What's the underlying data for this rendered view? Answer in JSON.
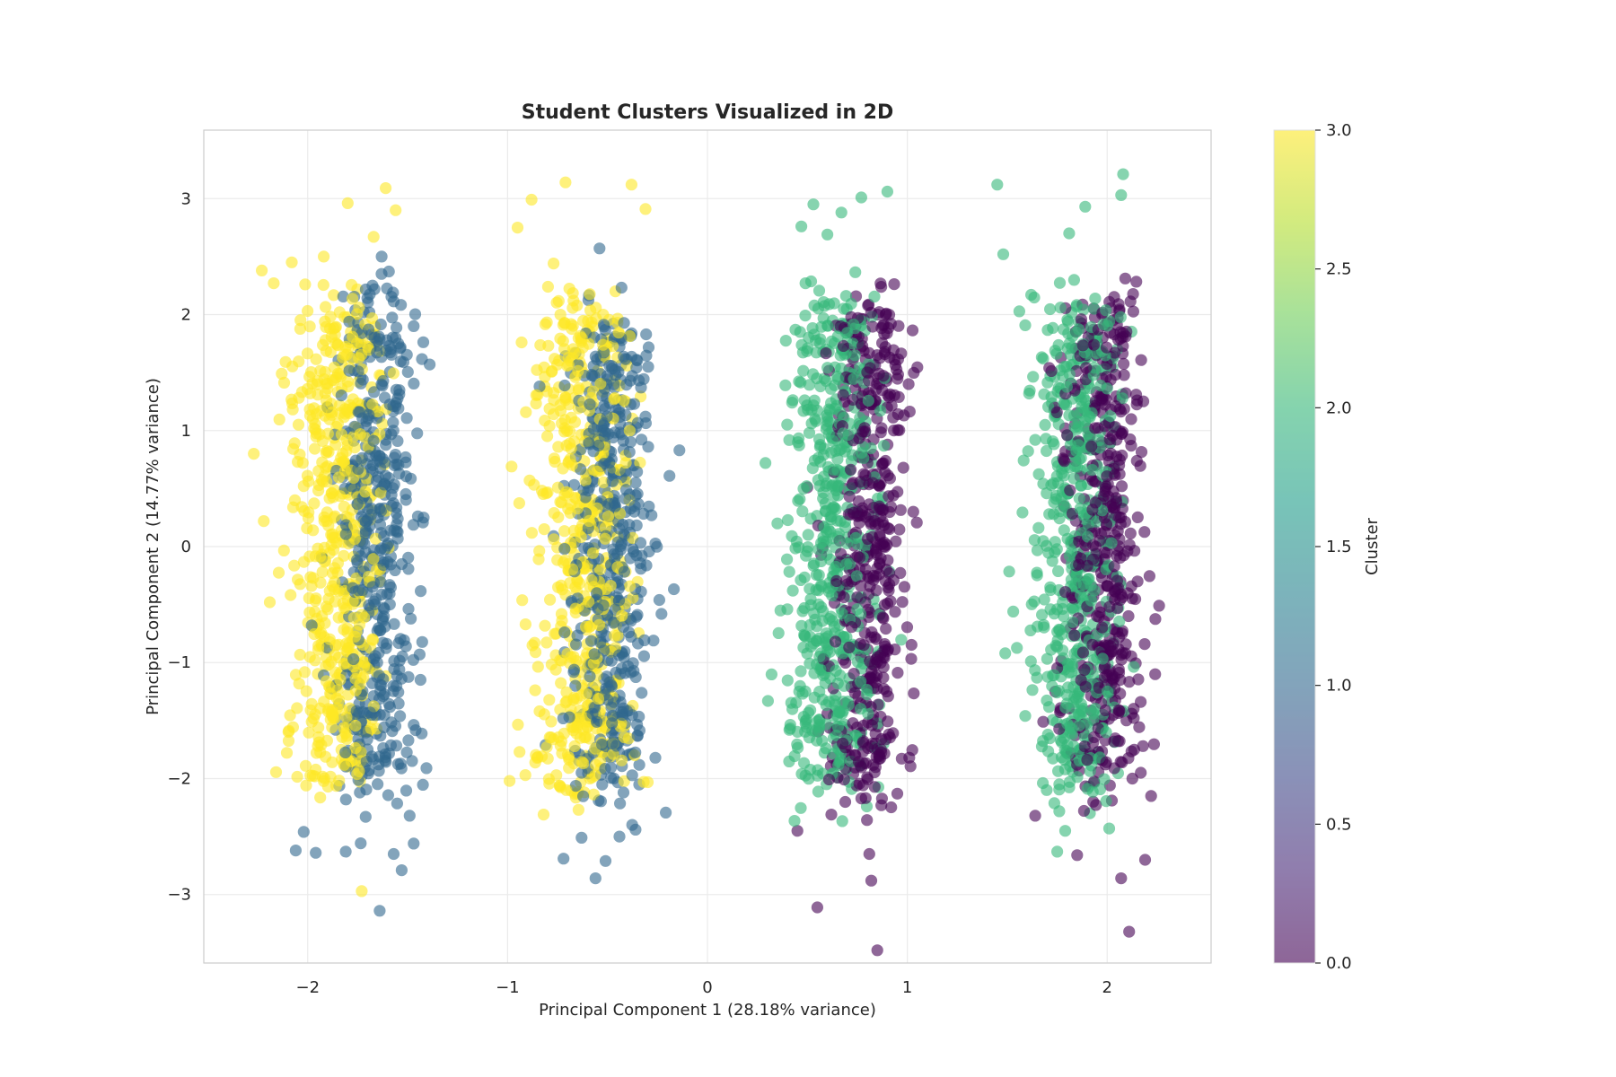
{
  "chart_data": {
    "type": "scatter",
    "title": "Student Clusters Visualized in 2D",
    "xlabel": "Principal Component 1 (28.18% variance)",
    "ylabel": "Principal Component 2 (14.77% variance)",
    "xlim": [
      -2.52,
      2.52
    ],
    "ylim": [
      -3.59,
      3.59
    ],
    "xticks": [
      -2,
      -1,
      0,
      1,
      2
    ],
    "xtick_labels": [
      "−2",
      "−1",
      "0",
      "1",
      "2"
    ],
    "yticks": [
      -3,
      -2,
      -1,
      0,
      1,
      2,
      3
    ],
    "ytick_labels": [
      "−3",
      "−2",
      "−1",
      "0",
      "1",
      "2",
      "3"
    ],
    "grid": true,
    "marker_alpha": 0.6,
    "colormap": "viridis",
    "colorbar": {
      "label": "Cluster",
      "range": [
        0.0,
        3.0
      ],
      "ticks": [
        0.0,
        0.5,
        1.0,
        1.5,
        2.0,
        2.5,
        3.0
      ],
      "tick_labels": [
        "0.0",
        "0.5",
        "1.0",
        "1.5",
        "2.0",
        "2.5",
        "3.0"
      ],
      "stops": [
        "#440154",
        "#482878",
        "#3e4989",
        "#31688e",
        "#26828e",
        "#1f9e89",
        "#35b779",
        "#6ece58",
        "#b5de2b",
        "#fde725"
      ]
    },
    "series": [
      {
        "cluster": 0,
        "color": "#440154",
        "x": [
          0.82,
          0.81,
          0.85,
          0.87,
          0.73,
          0.62,
          0.55,
          0.95,
          1.01,
          0.45,
          1.85,
          2.07,
          2.19,
          1.64,
          1.82,
          1.93,
          2.22,
          1.68,
          2.11,
          1.97,
          0.5,
          0.88,
          0.72,
          0.68,
          0.79,
          0.93,
          0.6,
          0.98,
          1.79,
          2.03,
          1.99,
          2.15,
          1.89,
          1.74,
          2.26,
          1.71,
          2.01,
          0.58,
          0.77,
          0.91,
          1.03,
          2.24,
          2.12
        ],
        "y": [
          -2.88,
          -2.65,
          -3.48,
          -2.23,
          -1.96,
          -2.31,
          -3.11,
          -2.13,
          -1.82,
          -2.45,
          -2.66,
          -2.86,
          -2.7,
          -2.32,
          -1.78,
          -2.2,
          -2.15,
          -1.51,
          -3.32,
          -1.35,
          0.51,
          -0.62,
          -1.21,
          1.73,
          -0.48,
          0.44,
          -1.44,
          0.68,
          1.02,
          -0.84,
          -1.67,
          1.26,
          0.19,
          -1.25,
          -0.51,
          1.54,
          0.05,
          -0.97,
          0.97,
          -0.23,
          0.3,
          -1.1,
          0.87
        ]
      },
      {
        "cluster": 1,
        "color": "#31688e",
        "x": [
          -1.53,
          -1.57,
          -1.64,
          -1.96,
          -2.06,
          -2.02,
          -1.49,
          -1.71,
          -1.81,
          -1.47,
          -1.39,
          -1.47,
          -1.63,
          -0.56,
          -0.63,
          -0.51,
          -0.36,
          -0.42,
          -0.44,
          -0.72,
          -0.27,
          -0.81,
          -0.28,
          -0.14,
          -0.62,
          -0.54,
          -0.49,
          -1.78,
          -1.59,
          -1.86,
          -1.69,
          -1.51,
          -1.92,
          -1.73,
          -1.44,
          -0.58,
          -0.46,
          -0.68,
          -0.31,
          -0.77,
          -0.39,
          -0.23,
          -0.84,
          -1.62,
          -1.55,
          -1.98,
          -1.42,
          -0.47,
          -0.19,
          -0.66
        ],
        "y": [
          -2.79,
          -2.65,
          -3.14,
          -2.64,
          -2.62,
          -2.46,
          -2.32,
          -2.33,
          -2.63,
          -2.56,
          1.57,
          1.9,
          2.5,
          -2.86,
          -2.51,
          -2.71,
          -2.44,
          -2.12,
          -2.5,
          -2.69,
          -0.81,
          -1.71,
          0.27,
          0.83,
          0.49,
          2.57,
          1.76,
          0.52,
          -0.33,
          -1.58,
          1.23,
          0.77,
          -1.11,
          1.84,
          -0.93,
          -1.01,
          0.35,
          -0.47,
          1.12,
          0.09,
          -1.79,
          -0.58,
          1.38,
          -0.19,
          0.91,
          -0.68,
          0.25,
          -1.34,
          0.61,
          1.67
        ]
      },
      {
        "cluster": 2,
        "color": "#35b779",
        "x": [
          0.47,
          0.53,
          0.67,
          0.6,
          0.77,
          0.9,
          0.29,
          0.35,
          0.4,
          1.45,
          1.48,
          1.81,
          1.89,
          2.07,
          2.08,
          1.53,
          1.49,
          1.79,
          2.01,
          1.75,
          0.44,
          0.51,
          0.63,
          0.71,
          0.56,
          0.39,
          0.83,
          0.48,
          1.62,
          1.68,
          1.72,
          1.84,
          1.59,
          1.95,
          1.77,
          0.58,
          0.66,
          0.41,
          1.64,
          1.71
        ],
        "y": [
          2.76,
          2.95,
          2.88,
          2.69,
          3.01,
          3.06,
          0.72,
          0.2,
          -0.54,
          3.12,
          2.52,
          2.7,
          2.93,
          3.03,
          3.21,
          -0.56,
          -0.92,
          -2.45,
          -2.43,
          -2.63,
          1.87,
          0.98,
          0.34,
          -0.43,
          -1.25,
          1.39,
          1.57,
          -0.87,
          2.17,
          1.62,
          0.53,
          -0.35,
          -1.46,
          1.74,
          -1.12,
          0.08,
          -1.86,
          -1.58,
          0.92,
          0.28
        ]
      },
      {
        "cluster": 3,
        "color": "#fde725",
        "x": [
          -2.23,
          -2.27,
          -1.8,
          -1.73,
          -1.61,
          -1.92,
          -2.17,
          -1.56,
          -1.67,
          -0.95,
          -0.88,
          -0.71,
          -0.38,
          -0.31,
          -0.98,
          -0.89,
          -0.53,
          -0.99,
          -0.82,
          -2.13,
          -2.05,
          -2.19,
          -1.87,
          -1.76,
          -2.08,
          -1.64,
          -1.98,
          -2.22,
          -0.93,
          -0.86,
          -0.73,
          -0.67,
          -0.94,
          -0.79,
          -0.58,
          -0.45,
          -0.84,
          -2.01,
          -1.83,
          -1.95,
          -0.91,
          -0.77
        ],
        "y": [
          2.38,
          0.8,
          2.96,
          -2.97,
          3.09,
          2.5,
          2.27,
          2.9,
          2.67,
          2.75,
          2.99,
          3.14,
          3.12,
          2.91,
          0.69,
          0.57,
          -1.69,
          -2.02,
          -2.31,
          1.49,
          0.73,
          -0.48,
          1.88,
          -1.24,
          2.45,
          0.97,
          -1.51,
          0.22,
          1.76,
          -0.91,
          0.38,
          2.12,
          -1.77,
          1.04,
          -0.29,
          1.93,
          -1.42,
          -1.89,
          0.14,
          1.31,
          -0.67,
          2.44
        ]
      }
    ]
  }
}
